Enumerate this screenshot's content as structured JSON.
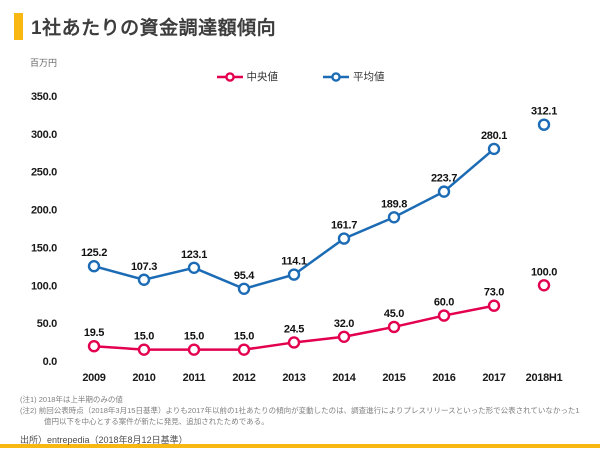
{
  "slide": {
    "title": "1社あたりの資金調達額傾向",
    "accent_color": "#f9b712",
    "unit_label": "百万円",
    "notes": [
      "(注1) 2018年は上半期のみの値",
      "(注2) 前回公表時点（2018年3月15日基準）よりも2017年以前の1社あたりの傾向が変動したのは、調査進行によりプレスリリースといった形で公表されていなかった1億円以下を中心とする案件が新たに発見、追加されたためである。"
    ],
    "source": "出所）entrepedia（2018年8月12日基準）"
  },
  "chart_data": {
    "type": "line",
    "title": "1社あたりの資金調達額傾向",
    "categories": [
      "2009",
      "2010",
      "2011",
      "2012",
      "2013",
      "2014",
      "2015",
      "2016",
      "2017",
      "2018H1"
    ],
    "series": [
      {
        "name": "中央値",
        "color": "#e3004f",
        "values": [
          19.5,
          15.0,
          15.0,
          15.0,
          24.5,
          32.0,
          45.0,
          60.0,
          73.0,
          100.0
        ],
        "last_point_detached": true
      },
      {
        "name": "平均値",
        "color": "#1c6cb5",
        "values": [
          125.2,
          107.3,
          123.1,
          95.4,
          114.1,
          161.7,
          189.8,
          223.7,
          280.1,
          312.1
        ],
        "last_point_detached": true
      }
    ],
    "xlabel": "",
    "ylabel": "百万円",
    "ylim": [
      0,
      350
    ],
    "ytick_step": 50,
    "grid": false,
    "legend_position": "top",
    "value_labels": true
  }
}
